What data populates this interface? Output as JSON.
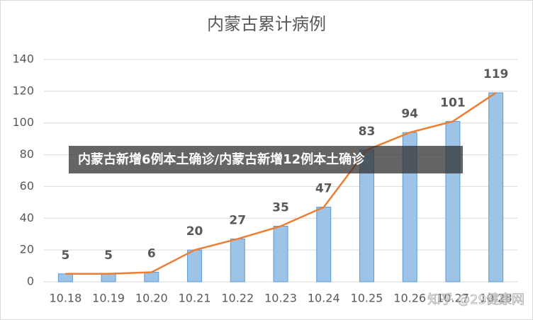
{
  "chart_data": {
    "type": "bar",
    "title": "内蒙古累计病例",
    "categories": [
      "10.18",
      "10.19",
      "10.20",
      "10.21",
      "10.22",
      "10.23",
      "10.24",
      "10.25",
      "10.26",
      "10.27",
      "10.28"
    ],
    "values": [
      5,
      5,
      6,
      20,
      27,
      35,
      47,
      83,
      94,
      101,
      119
    ],
    "color": "#9dc3e6",
    "line_color": "#ed7d31",
    "ylim": [
      0,
      140
    ],
    "yticks": [
      0,
      20,
      40,
      60,
      80,
      100,
      120,
      140
    ],
    "grid": true
  },
  "caption": "内蒙古新增6例本土确诊/内蒙古新增12例本土确诊",
  "watermark": "知乎 @29健康网"
}
